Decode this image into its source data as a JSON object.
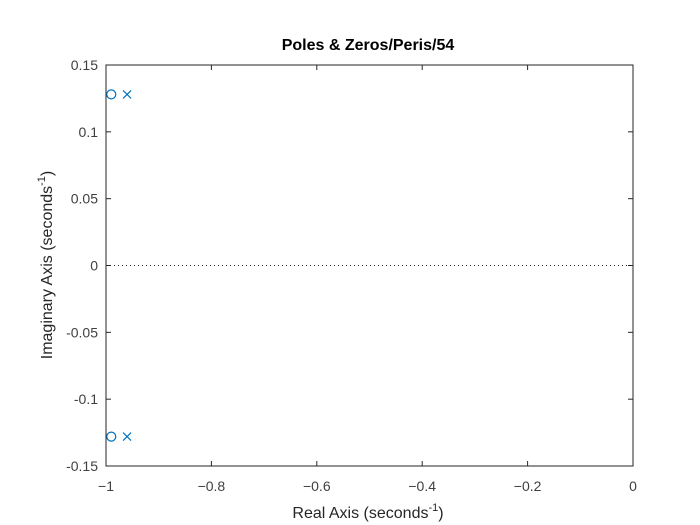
{
  "chart_data": {
    "type": "scatter",
    "title": "Poles & Zeros/Peris/54",
    "xlabel": {
      "text": "Real Axis (seconds",
      "superscript": "-1",
      "suffix": ")"
    },
    "ylabel": {
      "text": "Imaginary Axis (seconds",
      "superscript": "-1",
      "suffix": ")"
    },
    "xlim": [
      -1,
      0
    ],
    "ylim": [
      -0.15,
      0.15
    ],
    "x_ticks": [
      -1,
      -0.8,
      -0.6,
      -0.4,
      -0.2,
      0
    ],
    "x_tick_labels": [
      "−1",
      "−0.8",
      "−0.6",
      "−0.4",
      "−0.2",
      "0"
    ],
    "y_ticks": [
      0.15,
      0.1,
      0.05,
      0,
      -0.05,
      -0.1,
      -0.15
    ],
    "y_tick_labels": [
      "0.15",
      "0.1",
      "0.05",
      "0",
      "-0.05",
      "-0.1",
      "-0.15"
    ],
    "grid": false,
    "zero_line": true,
    "series": [
      {
        "marker": "o",
        "color": "#0072BD",
        "points": [
          [
            -0.99,
            0.128
          ],
          [
            -0.99,
            -0.128
          ]
        ]
      },
      {
        "marker": "x",
        "color": "#0072BD",
        "points": [
          [
            -0.96,
            0.128
          ],
          [
            -0.96,
            -0.128
          ]
        ]
      }
    ]
  }
}
